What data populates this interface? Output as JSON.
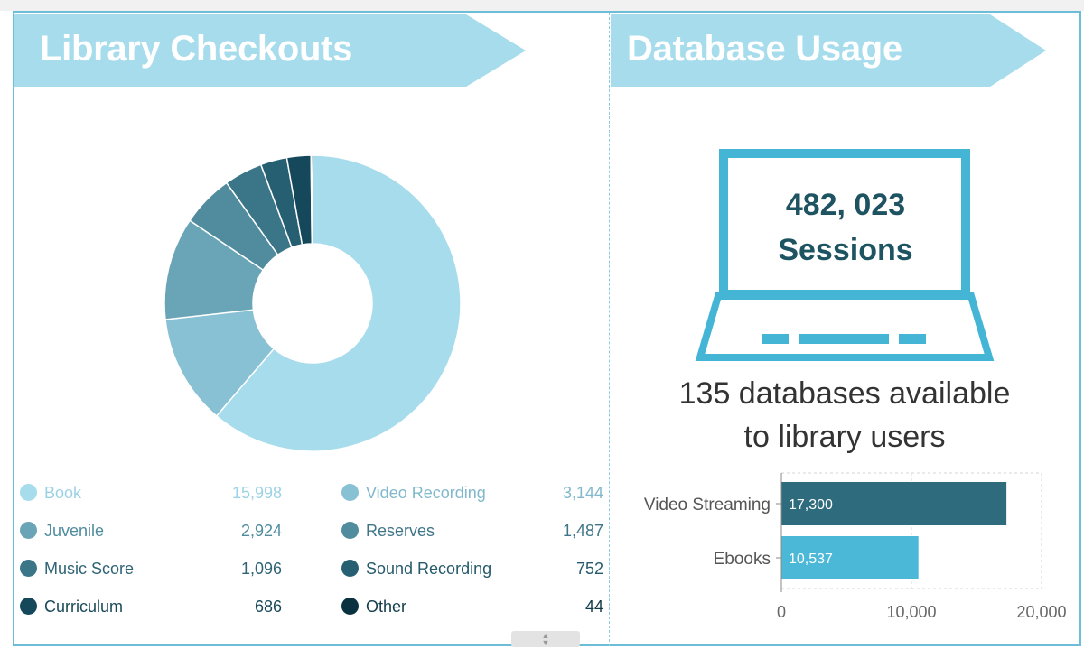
{
  "panels": {
    "left": {
      "title": "Library Checkouts"
    },
    "right": {
      "title": "Database Usage"
    }
  },
  "colors": {
    "banner": "#a6dcec",
    "frame": "#6cbdd8",
    "laptop": "#45b5d6",
    "sessions_text": "#1e5462"
  },
  "chart_data": [
    {
      "type": "pie",
      "style": "donut",
      "legend_position": "bottom",
      "slices": [
        {
          "label": "Book",
          "value": 15998,
          "display": "15,998",
          "color": "#a6dcec",
          "text_color": "#9bd2e6"
        },
        {
          "label": "Video Recording",
          "value": 3144,
          "display": "3,144",
          "color": "#89c1d4",
          "text_color": "#82b8cc"
        },
        {
          "label": "Juvenile",
          "value": 2924,
          "display": "2,924",
          "color": "#6aa5b7",
          "text_color": "#4f8c9e"
        },
        {
          "label": "Reserves",
          "value": 1487,
          "display": "1,487",
          "color": "#508c9e",
          "text_color": "#3f7588"
        },
        {
          "label": "Music Score",
          "value": 1096,
          "display": "1,096",
          "color": "#3b7588",
          "text_color": "#2f6475"
        },
        {
          "label": "Sound Recording",
          "value": 752,
          "display": "752",
          "color": "#275f72",
          "text_color": "#255a6b"
        },
        {
          "label": "Curriculum",
          "value": 686,
          "display": "686",
          "color": "#15485a",
          "text_color": "#1a4a5a"
        },
        {
          "label": "Other",
          "value": 44,
          "display": "44",
          "color": "#0a3140",
          "text_color": "#123b4a"
        }
      ]
    },
    {
      "type": "bar",
      "orientation": "horizontal",
      "categories": [
        "Video Streaming",
        "Ebooks"
      ],
      "values": [
        17300,
        10537
      ],
      "value_labels": [
        "17,300",
        "10,537"
      ],
      "colors": [
        "#2e6b7c",
        "#4bb8d8"
      ],
      "xlim": [
        0,
        20000
      ],
      "x_ticks": [
        "0",
        "10,000",
        "20,000"
      ],
      "grid": true
    }
  ],
  "database": {
    "sessions_number": "482, 023",
    "sessions_label": "Sessions",
    "available_line1": "135 databases available",
    "available_line2": "to library users"
  }
}
